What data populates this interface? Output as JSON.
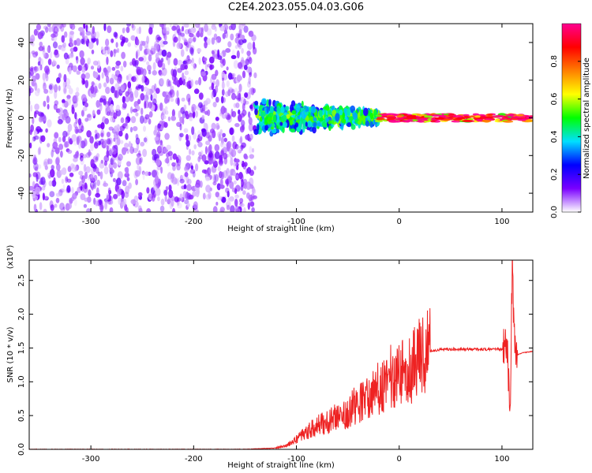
{
  "figure": {
    "title": "C2E4.2023.055.04.03.G06"
  },
  "chart_data": [
    {
      "type": "heatmap",
      "xlabel": "Height of straight line (km)",
      "ylabel": "Frequency (Hz)",
      "xlim": [
        -360,
        130
      ],
      "ylim": [
        -50,
        50
      ],
      "x_ticks": [
        -300,
        -200,
        -100,
        0,
        100
      ],
      "y_ticks": [
        -40,
        -20,
        0,
        20,
        40
      ],
      "colorbar": {
        "label": "Normalized spectral amplitude",
        "range": [
          0.0,
          1.0
        ],
        "ticks": [
          "0.0",
          "0.2",
          "0.4",
          "0.6",
          "0.8"
        ],
        "colors": [
          "#ffffff",
          "#7a00ff",
          "#0000ff",
          "#00e0ff",
          "#00ff00",
          "#ffff00",
          "#ff7f00",
          "#ff0000",
          "#ff0090"
        ]
      },
      "regions": [
        {
          "x": [
            -360,
            -140
          ],
          "freq": [
            -50,
            50
          ],
          "amplitude": 0.1,
          "pattern": "scattered noise"
        },
        {
          "x": [
            -140,
            -20
          ],
          "freq": [
            -10,
            10
          ],
          "amplitude": 0.35,
          "pattern": "broadband signal narrowing"
        },
        {
          "x": [
            -20,
            130
          ],
          "freq": [
            -2,
            2
          ],
          "amplitude": 0.8,
          "pattern": "narrow carrier line"
        }
      ],
      "grid": false
    },
    {
      "type": "line",
      "xlabel": "Height of straight line (km)",
      "ylabel": "SNR (10 * v/v)",
      "scale_label": "(x10⁴)",
      "xlim": [
        -360,
        130
      ],
      "ylim": [
        0,
        2.8
      ],
      "x_ticks": [
        -300,
        -200,
        -100,
        0,
        100
      ],
      "y_ticks": [
        "0.0",
        "0.5",
        "1.0",
        "1.5",
        "2.0",
        "2.5"
      ],
      "color": "#ee2222",
      "series": [
        {
          "x": [
            -360,
            -300,
            -250,
            -200,
            -150,
            -120,
            -110,
            -100,
            -90,
            -80,
            -70,
            -60,
            -50,
            -40,
            -30,
            -20,
            -10,
            0,
            10,
            20,
            30,
            40,
            50,
            60,
            70,
            80,
            90,
            100,
            105,
            108,
            110,
            112,
            115,
            120,
            130
          ],
          "values": [
            0.0,
            0.0,
            0.0,
            0.0,
            0.0,
            0.02,
            0.05,
            0.15,
            0.25,
            0.35,
            0.4,
            0.5,
            0.55,
            0.7,
            0.75,
            0.9,
            1.05,
            1.15,
            1.2,
            1.35,
            1.45,
            1.48,
            1.48,
            1.48,
            1.48,
            1.48,
            1.48,
            1.48,
            1.55,
            0.4,
            2.8,
            1.6,
            1.4,
            1.43,
            1.45
          ]
        }
      ],
      "grid": false
    }
  ]
}
